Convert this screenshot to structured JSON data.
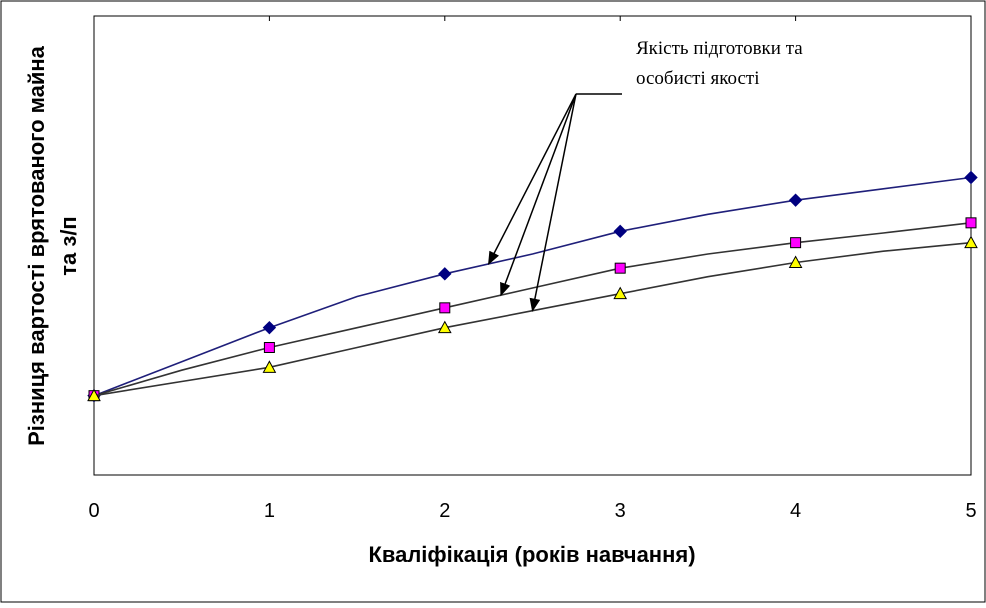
{
  "chart_data": {
    "type": "line",
    "title": "",
    "xlabel": "Кваліфікація (років навчання)",
    "ylabel_line1": "Різниця вартості врятованого майна",
    "ylabel_line2": "та з/п",
    "x_ticks": [
      "0",
      "1",
      "2",
      "3",
      "4",
      "5"
    ],
    "xlim": [
      0,
      5
    ],
    "ylim": [
      -1.4,
      6.7
    ],
    "grid": false,
    "legend": "none",
    "annotation": {
      "line1": "Якість підготовки та",
      "line2": "особисті якості"
    },
    "series": [
      {
        "marker": "diamond",
        "line_color": "#1f1f7a",
        "marker_fill": "#000080",
        "x": [
          0,
          0.5,
          1,
          1.5,
          2,
          2.5,
          3,
          3.5,
          4,
          4.5,
          5
        ],
        "values": [
          0,
          0.6,
          1.2,
          1.75,
          2.15,
          2.5,
          2.9,
          3.2,
          3.45,
          3.65,
          3.85
        ],
        "marker_x": [
          0,
          1,
          2,
          3,
          4,
          5
        ]
      },
      {
        "marker": "square",
        "line_color": "#333333",
        "marker_fill": "#ff00ff",
        "x": [
          0,
          0.5,
          1,
          1.5,
          2,
          2.5,
          3,
          3.5,
          4,
          4.5,
          5
        ],
        "values": [
          0,
          0.45,
          0.85,
          1.2,
          1.55,
          1.9,
          2.25,
          2.5,
          2.7,
          2.87,
          3.05
        ],
        "marker_x": [
          0,
          1,
          2,
          3,
          4,
          5
        ]
      },
      {
        "marker": "triangle",
        "line_color": "#333333",
        "marker_fill": "#ffff00",
        "x": [
          0,
          0.5,
          1,
          1.5,
          2,
          2.5,
          3,
          3.5,
          4,
          4.5,
          5
        ],
        "values": [
          0,
          0.25,
          0.5,
          0.85,
          1.2,
          1.5,
          1.8,
          2.1,
          2.35,
          2.55,
          2.7
        ],
        "marker_x": [
          0,
          1,
          2,
          3,
          4,
          5
        ]
      }
    ]
  }
}
